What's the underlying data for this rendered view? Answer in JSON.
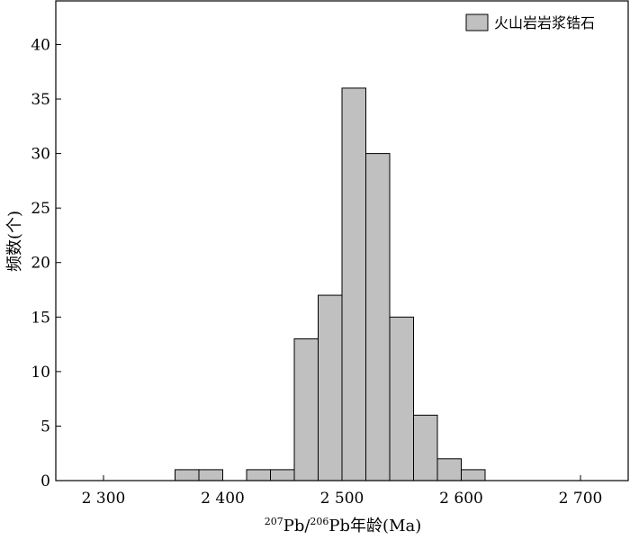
{
  "chart_data": {
    "type": "bar",
    "histogram": true,
    "bin_width": 20,
    "bins": [
      {
        "start": 2360,
        "end": 2380,
        "count": 1
      },
      {
        "start": 2380,
        "end": 2400,
        "count": 1
      },
      {
        "start": 2420,
        "end": 2440,
        "count": 1
      },
      {
        "start": 2440,
        "end": 2460,
        "count": 1
      },
      {
        "start": 2460,
        "end": 2480,
        "count": 13
      },
      {
        "start": 2480,
        "end": 2500,
        "count": 17
      },
      {
        "start": 2500,
        "end": 2520,
        "count": 36
      },
      {
        "start": 2520,
        "end": 2540,
        "count": 30
      },
      {
        "start": 2540,
        "end": 2560,
        "count": 15
      },
      {
        "start": 2560,
        "end": 2580,
        "count": 6
      },
      {
        "start": 2580,
        "end": 2600,
        "count": 2
      },
      {
        "start": 2600,
        "end": 2620,
        "count": 1
      }
    ],
    "xlim": [
      2260,
      2740
    ],
    "ylim": [
      0,
      44
    ],
    "x_ticks": [
      2300,
      2400,
      2500,
      2600,
      2700
    ],
    "x_tick_labels": [
      "2 300",
      "2 400",
      "2 500",
      "2 600",
      "2 700"
    ],
    "y_ticks": [
      0,
      5,
      10,
      15,
      20,
      25,
      30,
      35,
      40
    ],
    "y_tick_labels": [
      "0",
      "5",
      "10",
      "15",
      "20",
      "25",
      "30",
      "35",
      "40"
    ],
    "xlabel": {
      "sup1": "207",
      "t1": "Pb/",
      "sup2": "206",
      "t2": "Pb年龄(Ma)"
    },
    "ylabel": "频数(个)",
    "legend": {
      "position": "top-right",
      "entries": [
        "火山岩岩浆锆石"
      ]
    },
    "grid": false,
    "colors": {
      "bar_fill": "#c0c0c0",
      "bar_stroke": "#000000",
      "axis": "#000000"
    }
  }
}
